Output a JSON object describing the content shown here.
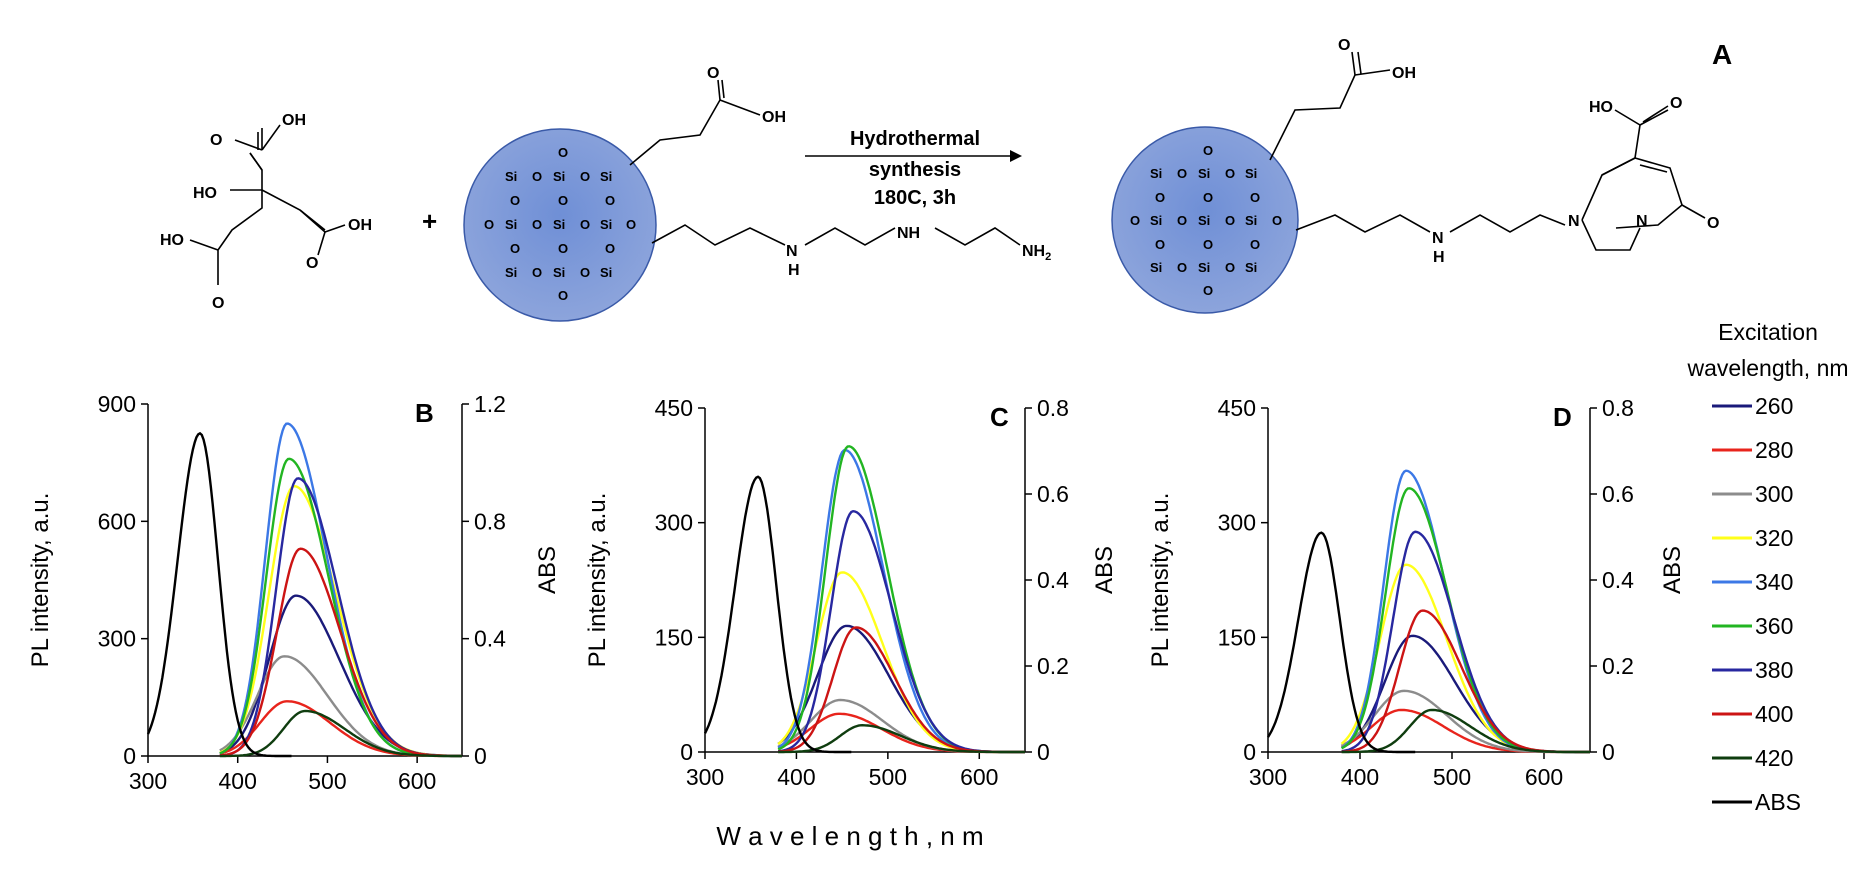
{
  "scheme": {
    "panel_label": "A",
    "reaction": {
      "arrow_line1": "Hydrothermal",
      "arrow_line2": "synthesis",
      "arrow_line3": "180C, 3h",
      "plus": "+"
    },
    "atoms": {
      "O": "O",
      "OH": "OH",
      "HO": "HO",
      "Si": "Si",
      "NH": "NH",
      "N": "N",
      "H": "H",
      "NH2": "NH",
      "NH2_sub": "2"
    }
  },
  "legend": {
    "title_line1": "Excitation",
    "title_line2": "wavelength, nm",
    "items": [
      {
        "label": "260",
        "color": "#1a1a7a"
      },
      {
        "label": "280",
        "color": "#e8241c"
      },
      {
        "label": "300",
        "color": "#8c8c8c"
      },
      {
        "label": "320",
        "color": "#ffff1a"
      },
      {
        "label": "340",
        "color": "#3c78e6"
      },
      {
        "label": "360",
        "color": "#22b522"
      },
      {
        "label": "380",
        "color": "#2828a0"
      },
      {
        "label": "400",
        "color": "#cc1414"
      },
      {
        "label": "420",
        "color": "#0f3d0f"
      },
      {
        "label": "ABS",
        "color": "#000000"
      }
    ]
  },
  "shared_xlabel": "W a v e l e n g t h ,   n m",
  "chart_data": [
    {
      "type": "line",
      "panel": "B",
      "title": "B",
      "xlabel": "",
      "ylabel": "PL intensity, a.u.",
      "y2label": "ABS",
      "xlim": [
        300,
        650
      ],
      "ylim": [
        0,
        900
      ],
      "y2lim": [
        0,
        1.2
      ],
      "xticks": [
        "300",
        "400",
        "500",
        "600"
      ],
      "yticks": [
        "0",
        "300",
        "600",
        "900"
      ],
      "y2ticks": [
        "0",
        "0.4",
        "0.8",
        "1.2"
      ],
      "abs": {
        "peak_x": 358,
        "peak_y": 1.1
      },
      "series": [
        {
          "name": "260",
          "peak": 465,
          "height": 410,
          "sigma_left": 30,
          "sigma_right": 48
        },
        {
          "name": "280",
          "peak": 455,
          "height": 140,
          "sigma_left": 30,
          "sigma_right": 48
        },
        {
          "name": "300",
          "peak": 452,
          "height": 255,
          "sigma_left": 30,
          "sigma_right": 48
        },
        {
          "name": "320",
          "peak": 463,
          "height": 690,
          "sigma_left": 28,
          "sigma_right": 46
        },
        {
          "name": "340",
          "peak": 455,
          "height": 850,
          "sigma_left": 24,
          "sigma_right": 44
        },
        {
          "name": "360",
          "peak": 457,
          "height": 760,
          "sigma_left": 25,
          "sigma_right": 44
        },
        {
          "name": "380",
          "peak": 467,
          "height": 710,
          "sigma_left": 24,
          "sigma_right": 44
        },
        {
          "name": "400",
          "peak": 470,
          "height": 530,
          "sigma_left": 26,
          "sigma_right": 44
        },
        {
          "name": "420",
          "peak": 475,
          "height": 115,
          "sigma_left": 24,
          "sigma_right": 44
        }
      ]
    },
    {
      "type": "line",
      "panel": "C",
      "title": "C",
      "xlabel": "",
      "ylabel": "PL intensity, a.u.",
      "y2label": "ABS",
      "xlim": [
        300,
        650
      ],
      "ylim": [
        0,
        450
      ],
      "y2lim": [
        0,
        0.8
      ],
      "xticks": [
        "300",
        "400",
        "500",
        "600"
      ],
      "yticks": [
        "0",
        "150",
        "300",
        "450"
      ],
      "y2ticks": [
        "0",
        "0.2",
        "0.4",
        "0.6",
        "0.8"
      ],
      "abs": {
        "peak_x": 358,
        "peak_y": 0.64
      },
      "series": [
        {
          "name": "260",
          "peak": 455,
          "height": 165,
          "sigma_left": 32,
          "sigma_right": 46
        },
        {
          "name": "280",
          "peak": 447,
          "height": 50,
          "sigma_left": 32,
          "sigma_right": 46
        },
        {
          "name": "300",
          "peak": 448,
          "height": 68,
          "sigma_left": 32,
          "sigma_right": 46
        },
        {
          "name": "320",
          "peak": 450,
          "height": 235,
          "sigma_left": 28,
          "sigma_right": 44
        },
        {
          "name": "340",
          "peak": 453,
          "height": 395,
          "sigma_left": 25,
          "sigma_right": 42
        },
        {
          "name": "360",
          "peak": 457,
          "height": 400,
          "sigma_left": 25,
          "sigma_right": 42
        },
        {
          "name": "380",
          "peak": 462,
          "height": 315,
          "sigma_left": 24,
          "sigma_right": 42
        },
        {
          "name": "400",
          "peak": 465,
          "height": 163,
          "sigma_left": 25,
          "sigma_right": 42
        },
        {
          "name": "420",
          "peak": 472,
          "height": 35,
          "sigma_left": 24,
          "sigma_right": 42
        }
      ]
    },
    {
      "type": "line",
      "panel": "D",
      "title": "D",
      "xlabel": "",
      "ylabel": "PL intensity, a.u.",
      "y2label": "ABS",
      "xlim": [
        300,
        650
      ],
      "ylim": [
        0,
        450
      ],
      "y2lim": [
        0,
        0.8
      ],
      "xticks": [
        "300",
        "400",
        "500",
        "600"
      ],
      "yticks": [
        "0",
        "150",
        "300",
        "450"
      ],
      "y2ticks": [
        "0",
        "0.2",
        "0.4",
        "0.6",
        "0.8"
      ],
      "abs": {
        "peak_x": 358,
        "peak_y": 0.51
      },
      "series": [
        {
          "name": "260",
          "peak": 457,
          "height": 152,
          "sigma_left": 30,
          "sigma_right": 46
        },
        {
          "name": "280",
          "peak": 445,
          "height": 55,
          "sigma_left": 32,
          "sigma_right": 46
        },
        {
          "name": "300",
          "peak": 448,
          "height": 80,
          "sigma_left": 32,
          "sigma_right": 46
        },
        {
          "name": "320",
          "peak": 450,
          "height": 245,
          "sigma_left": 28,
          "sigma_right": 44
        },
        {
          "name": "340",
          "peak": 450,
          "height": 368,
          "sigma_left": 24,
          "sigma_right": 42
        },
        {
          "name": "360",
          "peak": 453,
          "height": 345,
          "sigma_left": 25,
          "sigma_right": 42
        },
        {
          "name": "380",
          "peak": 460,
          "height": 288,
          "sigma_left": 24,
          "sigma_right": 42
        },
        {
          "name": "400",
          "peak": 468,
          "height": 185,
          "sigma_left": 25,
          "sigma_right": 42
        },
        {
          "name": "420",
          "peak": 478,
          "height": 55,
          "sigma_left": 24,
          "sigma_right": 42
        }
      ]
    }
  ]
}
